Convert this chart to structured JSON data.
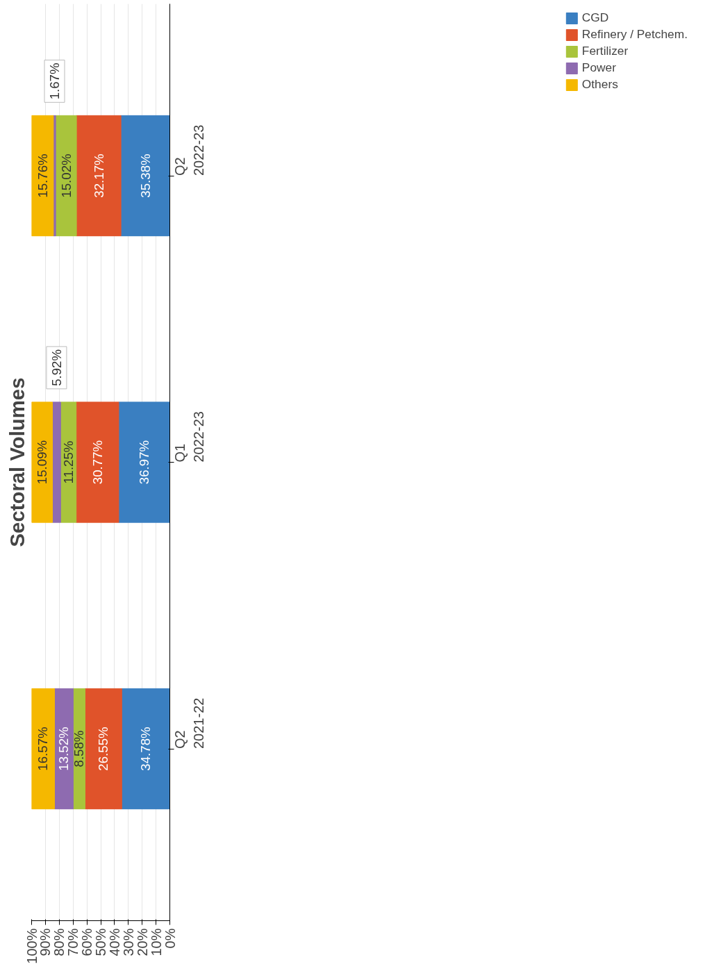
{
  "chart_data": {
    "type": "bar",
    "title": "Sectoral Volumes",
    "orientation": "horizontal",
    "stacked": true,
    "categories": [
      "Q2\n2022-23",
      "Q1\n2022-23",
      "Q2\n2021-22"
    ],
    "series": [
      {
        "name": "CGD",
        "color": "#3a7fc1",
        "values": [
          35.38,
          36.97,
          34.78
        ]
      },
      {
        "name": "Refinery / Petchem.",
        "color": "#e0532a",
        "values": [
          32.17,
          30.77,
          26.55
        ]
      },
      {
        "name": "Fertilizer",
        "color": "#a9c43c",
        "values": [
          15.02,
          11.25,
          8.58
        ]
      },
      {
        "name": "Power",
        "color": "#8e6bb0",
        "values": [
          1.67,
          5.92,
          13.52
        ]
      },
      {
        "name": "Others",
        "color": "#f5b800",
        "values": [
          15.76,
          15.09,
          16.57
        ]
      }
    ],
    "xlim": [
      100,
      0
    ],
    "xticks": [
      {
        "value": 0,
        "label": "0%"
      },
      {
        "value": 10,
        "label": "10%"
      },
      {
        "value": 20,
        "label": "20%"
      },
      {
        "value": 30,
        "label": "30%"
      },
      {
        "value": 40,
        "label": "40%"
      },
      {
        "value": 50,
        "label": "50%"
      },
      {
        "value": 60,
        "label": "60%"
      },
      {
        "value": 70,
        "label": "70%"
      },
      {
        "value": 80,
        "label": "80%"
      },
      {
        "value": 90,
        "label": "90%"
      },
      {
        "value": 100,
        "label": "100%"
      }
    ],
    "value_labels": [
      [
        "35.38%",
        "36.97%",
        "34.78%"
      ],
      [
        "32.17%",
        "30.77%",
        "26.55%"
      ],
      [
        "15.02%",
        "11.25%",
        "8.58%"
      ],
      [
        "1.67%",
        "5.92%",
        "13.52%"
      ],
      [
        "15.76%",
        "15.09%",
        "16.57%"
      ]
    ],
    "grid": "x",
    "legend": "right"
  }
}
